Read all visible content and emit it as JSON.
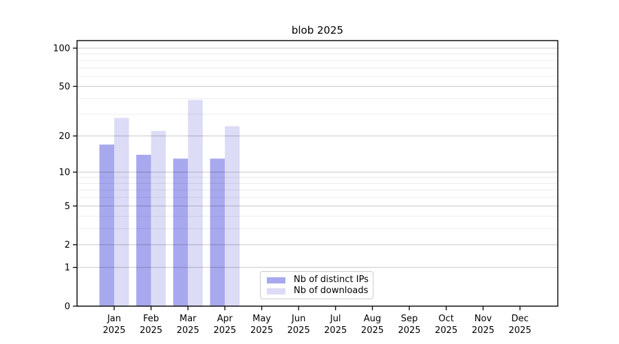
{
  "chart_data": {
    "type": "bar",
    "title": "blob 2025",
    "categories": [
      "Jan 2025",
      "Feb 2025",
      "Mar 2025",
      "Apr 2025",
      "May 2025",
      "Jun 2025",
      "Jul 2025",
      "Aug 2025",
      "Sep 2025",
      "Oct 2025",
      "Nov 2025",
      "Dec 2025"
    ],
    "series": [
      {
        "name": "Nb of distinct IPs",
        "color": "#a8a8ee",
        "values": [
          17,
          14,
          13,
          13,
          null,
          null,
          null,
          null,
          null,
          null,
          null,
          null
        ]
      },
      {
        "name": "Nb of downloads",
        "color": "#dcdcf7",
        "values": [
          28,
          22,
          39,
          24,
          null,
          null,
          null,
          null,
          null,
          null,
          null,
          null
        ]
      }
    ],
    "xlabel": "",
    "ylabel": "",
    "y_scale": "log1p",
    "y_ticks": [
      0,
      1,
      2,
      5,
      10,
      20,
      50,
      100
    ],
    "y_minor_gridlines": [
      3,
      4,
      6,
      7,
      8,
      9,
      30,
      40,
      60,
      70,
      80,
      90
    ],
    "ylim": [
      0,
      115
    ],
    "grid": "horizontal major and minor gridlines drawn over bars",
    "legend_position": "inside lower-center"
  }
}
